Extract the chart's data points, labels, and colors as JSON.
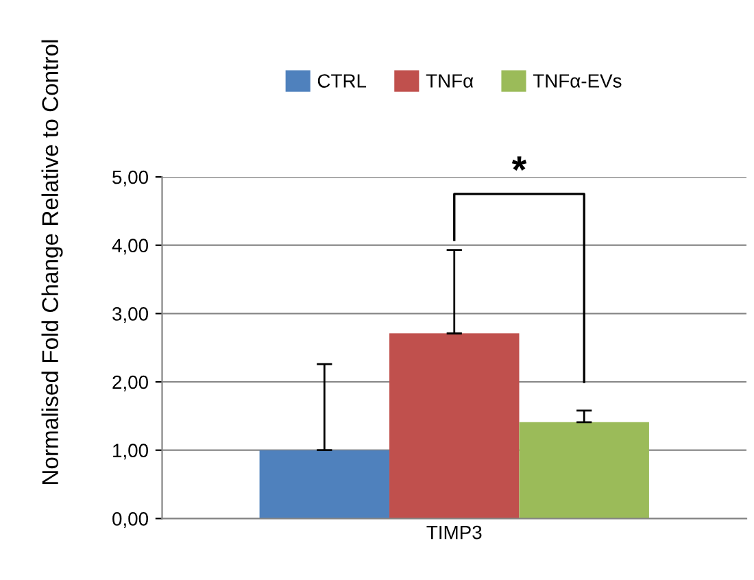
{
  "chart_data": {
    "type": "bar",
    "ylabel": "Normalised Fold Change Relative to Control",
    "categories": [
      "TIMP3"
    ],
    "series": [
      {
        "name": "CTRL",
        "color": "#4f81bd",
        "values": [
          1.0
        ],
        "errors": [
          [
            1.0,
            2.26
          ]
        ]
      },
      {
        "name": "TNFα",
        "color": "#c0504d",
        "values": [
          2.71
        ],
        "errors": [
          [
            2.71,
            3.93
          ]
        ]
      },
      {
        "name": "TNFα-EVs",
        "color": "#9bbb59",
        "values": [
          1.41
        ],
        "errors": [
          [
            1.41,
            1.58
          ]
        ]
      }
    ],
    "ylim": [
      0,
      5
    ],
    "yticks": [
      {
        "value": 0,
        "label": "0,00"
      },
      {
        "value": 1,
        "label": "1,00"
      },
      {
        "value": 2,
        "label": "2,00"
      },
      {
        "value": 3,
        "label": "3,00"
      },
      {
        "value": 4,
        "label": "4,00"
      },
      {
        "value": 5,
        "label": "5,00"
      }
    ],
    "grid": "y",
    "legend": "top",
    "annotations": [
      "*"
    ]
  }
}
